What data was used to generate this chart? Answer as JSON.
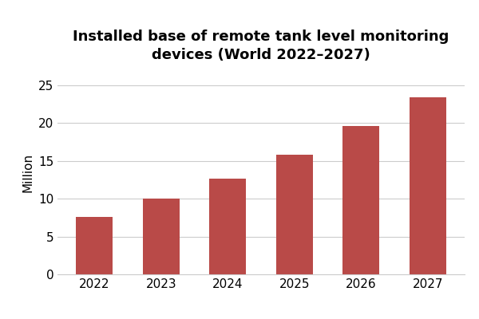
{
  "title": "Installed base of remote tank level monitoring\ndevices (World 2022–2027)",
  "years": [
    "2022",
    "2023",
    "2024",
    "2025",
    "2026",
    "2027"
  ],
  "values": [
    7.6,
    10.0,
    12.7,
    15.8,
    19.6,
    23.4
  ],
  "bar_color": "#b94a48",
  "ylabel": "Million",
  "ylim": [
    0,
    27
  ],
  "yticks": [
    0,
    5,
    10,
    15,
    20,
    25
  ],
  "title_fontsize": 13,
  "axis_fontsize": 11,
  "tick_fontsize": 11,
  "background_color": "#ffffff",
  "grid_color": "#cccccc"
}
